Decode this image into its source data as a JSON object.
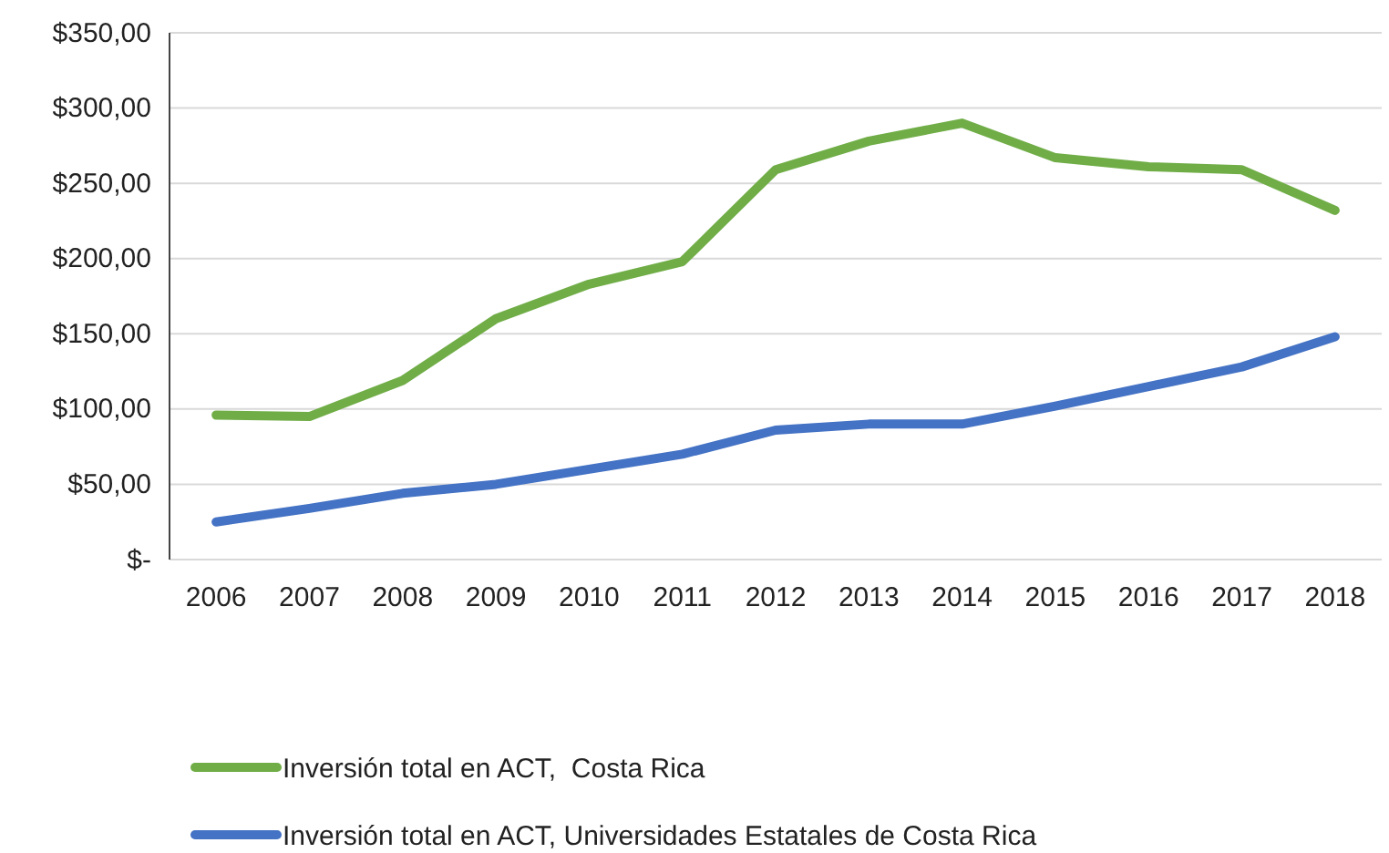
{
  "chart_data": {
    "type": "line",
    "categories": [
      "2006",
      "2007",
      "2008",
      "2009",
      "2010",
      "2011",
      "2012",
      "2013",
      "2014",
      "2015",
      "2016",
      "2017",
      "2018"
    ],
    "series": [
      {
        "name": "Inversión total en ACT,  Costa Rica",
        "color": "#70ad47",
        "values": [
          96,
          95,
          119,
          160,
          183,
          198,
          259,
          278,
          290,
          267,
          261,
          259,
          232
        ]
      },
      {
        "name": "Inversión total en ACT, Universidades Estatales de Costa Rica",
        "color": "#4472c4",
        "values": [
          25,
          34,
          44,
          50,
          60,
          70,
          86,
          90,
          90,
          102,
          115,
          128,
          148
        ]
      }
    ],
    "ylim": [
      0,
      350
    ],
    "yticks": [
      {
        "value": 0,
        "label": "$-"
      },
      {
        "value": 50,
        "label": "$50,00"
      },
      {
        "value": 100,
        "label": "$100,00"
      },
      {
        "value": 150,
        "label": "$150,00"
      },
      {
        "value": 200,
        "label": "$200,00"
      },
      {
        "value": 250,
        "label": "$250,00"
      },
      {
        "value": 300,
        "label": "$300,00"
      },
      {
        "value": 350,
        "label": "$350,00"
      }
    ],
    "grid": "y",
    "legend": "bottom",
    "marker": "none",
    "line_style": "solid"
  }
}
